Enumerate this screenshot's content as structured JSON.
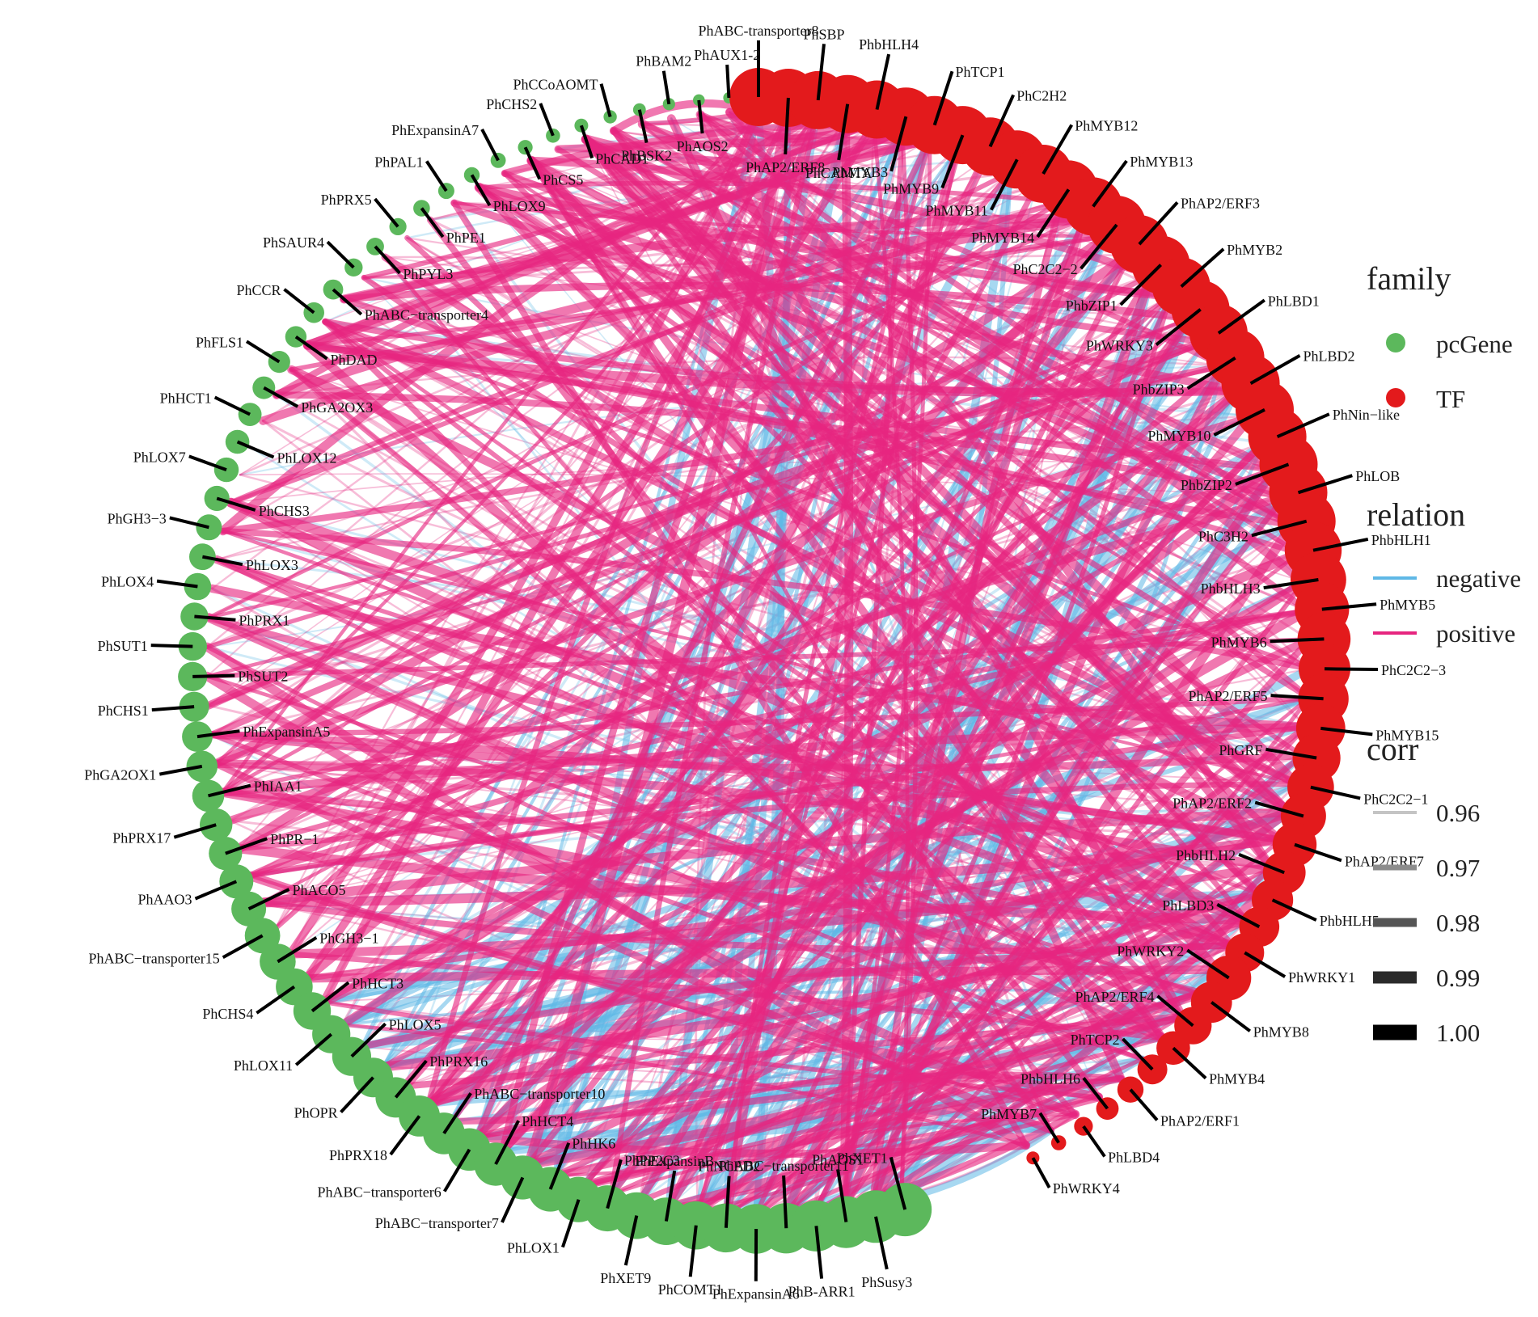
{
  "colors": {
    "pcGene": "#5cb85c",
    "TF": "#e31a1c",
    "negative": "#5fb8e6",
    "positive": "#e6257f",
    "leader": "#000000"
  },
  "pc_genes": [
    "PhAUX1-2",
    "PhAOS2",
    "PhBAM2",
    "PhBSK2",
    "PhCCoAOMT",
    "PhCAD1",
    "PhCHS2",
    "PhCS5",
    "PhExpansinA7",
    "PhLOX9",
    "PhPAL1",
    "PhPE1",
    "PhPRX5",
    "PhPYL3",
    "PhSAUR4",
    "PhABC−transporter4",
    "PhCCR",
    "PhDAD",
    "PhFLS1",
    "PhGA2OX3",
    "PhHCT1",
    "PhLOX12",
    "PhLOX7",
    "PhCHS3",
    "PhGH3−3",
    "PhLOX3",
    "PhLOX4",
    "PhPRX1",
    "PhSUT1",
    "PhSUT2",
    "PhCHS1",
    "PhExpansinA5",
    "PhGA2OX1",
    "PhIAA1",
    "PhPRX17",
    "PhPR−1",
    "PhAAO3",
    "PhACO5",
    "PhABC−transporter15",
    "PhGH3−1",
    "PhCHS4",
    "PhHCT3",
    "PhLOX11",
    "PhLOX5",
    "PhOPR",
    "PhPRX16",
    "PhPRX18",
    "PhABC−transporter10",
    "PhABC−transporter6",
    "PhHCT4",
    "PhABC−transporter7",
    "PhHK6",
    "PhLOX1",
    "PhPP2C3",
    "PhXET9",
    "PhExpansinB",
    "PhCOMT1",
    "PhNCED2",
    "PhExpansinA6",
    "PhABC−transporter11",
    "PhB-ARR1",
    "PhAOS1",
    "PhSusy3",
    "PhXET1"
  ],
  "tfs": [
    "PhABC-transporter8",
    "PhAP2/ERF8",
    "PhSBP",
    "PhCAMTA",
    "PhbHLH4",
    "PhMYB3",
    "PhTCP1",
    "PhMYB9",
    "PhC2H2",
    "PhMYB11",
    "PhMYB12",
    "PhMYB14",
    "PhMYB13",
    "PhC2C2−2",
    "PhAP2/ERF3",
    "PhbZIP1",
    "PhMYB2",
    "PhWRKY3",
    "PhLBD1",
    "PhbZIP3",
    "PhLBD2",
    "PhMYB10",
    "PhNin−like",
    "PhbZIP2",
    "PhLOB",
    "PhC3H2",
    "PhbHLH1",
    "PhbHLH3",
    "PhMYB5",
    "PhMYB6",
    "PhC2C2−3",
    "PhAP2/ERF5",
    "PhMYB15",
    "PhGRF",
    "PhC2C2−1",
    "PhAP2/ERF2",
    "PhAP2/ERF7",
    "PhbHLH2",
    "PhbHLH5",
    "PhLBD3",
    "PhWRKY1",
    "PhWRKY2",
    "PhMYB8",
    "PhAP2/ERF4",
    "PhMYB4",
    "PhTCP2",
    "PhAP2/ERF1",
    "PhbHLH6",
    "PhLBD4",
    "PhMYB7",
    "PhWRKY4"
  ],
  "legend": {
    "family_title": "family",
    "family_items": [
      {
        "label": "pcGene",
        "color": "#5cb85c"
      },
      {
        "label": "TF",
        "color": "#e31a1c"
      }
    ],
    "relation_title": "relation",
    "relation_items": [
      {
        "label": "negative",
        "color": "#5fb8e6"
      },
      {
        "label": "positive",
        "color": "#e6257f"
      }
    ],
    "corr_title": "corr",
    "corr_items": [
      {
        "label": "0.96",
        "shade": "#c4c4c4"
      },
      {
        "label": "0.97",
        "shade": "#8c8c8c"
      },
      {
        "label": "0.98",
        "shade": "#555555"
      },
      {
        "label": "0.99",
        "shade": "#2a2a2a"
      },
      {
        "label": "1.00",
        "shade": "#000000"
      }
    ]
  }
}
